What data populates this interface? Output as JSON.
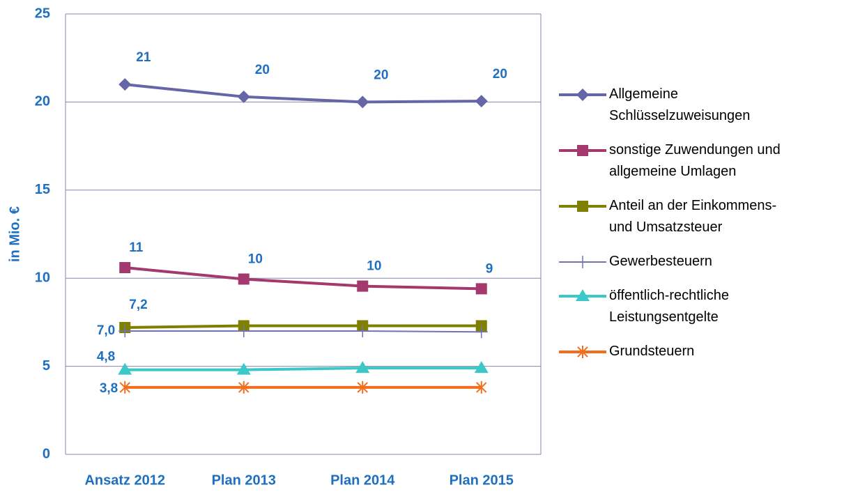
{
  "chart_data": {
    "type": "line",
    "y_label": "in Mio. €",
    "categories": [
      "Ansatz 2012",
      "Plan 2013",
      "Plan 2014",
      "Plan 2015"
    ],
    "ylim": [
      0,
      25
    ],
    "yticks": [
      0,
      5,
      10,
      15,
      20,
      25
    ],
    "grid": true,
    "legend": "right",
    "series": [
      {
        "name": "Allgemeine Schlüsselzuweisungen",
        "color": "#6565a8",
        "marker": "diamond",
        "values": [
          21,
          20.3,
          20,
          20.05
        ],
        "value_labels": [
          "21",
          "20",
          "20",
          "20"
        ]
      },
      {
        "name": "sonstige Zuwendungen und allgemeine Umlagen",
        "color": "#a3396c",
        "marker": "square",
        "values": [
          10.6,
          9.95,
          9.55,
          9.4
        ],
        "value_labels": [
          "11",
          "10",
          "10",
          "9"
        ]
      },
      {
        "name": "Anteil an der Einkommens- und Umsatzsteuer",
        "color": "#7f7f00",
        "marker": "square",
        "values": [
          7.2,
          7.3,
          7.3,
          7.3
        ],
        "value_labels": [
          "7,2",
          null,
          null,
          null
        ]
      },
      {
        "name": "Gewerbesteuern",
        "color": "#7373b3",
        "marker": "plus",
        "values": [
          7.0,
          7.0,
          7.0,
          6.95
        ],
        "value_labels": [
          "7,0",
          null,
          null,
          null
        ]
      },
      {
        "name": "öffentlich-rechtliche Leistungsentgelte",
        "color": "#3cc8c8",
        "marker": "triangle",
        "values": [
          4.8,
          4.8,
          4.9,
          4.9
        ],
        "value_labels": [
          "4,8",
          null,
          null,
          null
        ]
      },
      {
        "name": "Grundsteuern",
        "color": "#f26e1d",
        "marker": "star",
        "values": [
          3.8,
          3.8,
          3.8,
          3.8
        ],
        "value_labels": [
          "3,8",
          null,
          null,
          null
        ]
      }
    ]
  }
}
